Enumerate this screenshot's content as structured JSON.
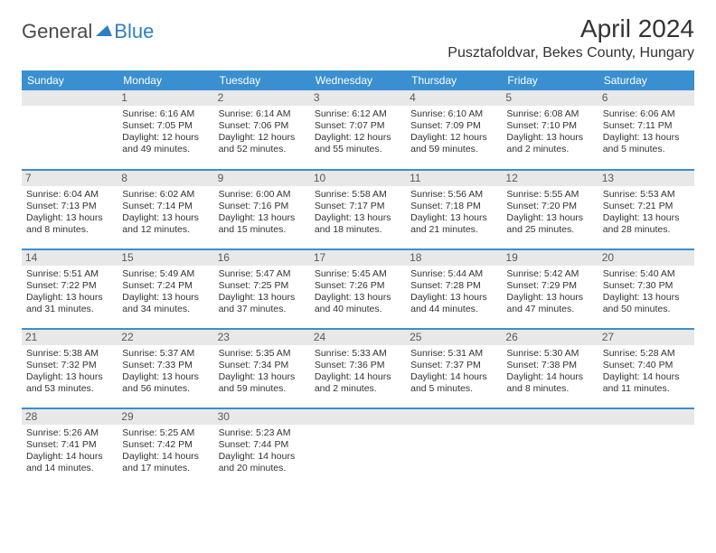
{
  "logo": {
    "general": "General",
    "blue": "Blue"
  },
  "title": "April 2024",
  "location": "Pusztafoldvar, Bekes County, Hungary",
  "colors": {
    "header_bg": "#3a8fd0",
    "header_text": "#ffffff",
    "daynum_bg": "#e8e8e8",
    "text": "#333333",
    "border": "#3a8fd0"
  },
  "days_of_week": [
    "Sunday",
    "Monday",
    "Tuesday",
    "Wednesday",
    "Thursday",
    "Friday",
    "Saturday"
  ],
  "weeks": [
    [
      {
        "day": "",
        "lines": [
          "",
          "",
          "",
          ""
        ]
      },
      {
        "day": "1",
        "lines": [
          "Sunrise: 6:16 AM",
          "Sunset: 7:05 PM",
          "Daylight: 12 hours",
          "and 49 minutes."
        ]
      },
      {
        "day": "2",
        "lines": [
          "Sunrise: 6:14 AM",
          "Sunset: 7:06 PM",
          "Daylight: 12 hours",
          "and 52 minutes."
        ]
      },
      {
        "day": "3",
        "lines": [
          "Sunrise: 6:12 AM",
          "Sunset: 7:07 PM",
          "Daylight: 12 hours",
          "and 55 minutes."
        ]
      },
      {
        "day": "4",
        "lines": [
          "Sunrise: 6:10 AM",
          "Sunset: 7:09 PM",
          "Daylight: 12 hours",
          "and 59 minutes."
        ]
      },
      {
        "day": "5",
        "lines": [
          "Sunrise: 6:08 AM",
          "Sunset: 7:10 PM",
          "Daylight: 13 hours",
          "and 2 minutes."
        ]
      },
      {
        "day": "6",
        "lines": [
          "Sunrise: 6:06 AM",
          "Sunset: 7:11 PM",
          "Daylight: 13 hours",
          "and 5 minutes."
        ]
      }
    ],
    [
      {
        "day": "7",
        "lines": [
          "Sunrise: 6:04 AM",
          "Sunset: 7:13 PM",
          "Daylight: 13 hours",
          "and 8 minutes."
        ]
      },
      {
        "day": "8",
        "lines": [
          "Sunrise: 6:02 AM",
          "Sunset: 7:14 PM",
          "Daylight: 13 hours",
          "and 12 minutes."
        ]
      },
      {
        "day": "9",
        "lines": [
          "Sunrise: 6:00 AM",
          "Sunset: 7:16 PM",
          "Daylight: 13 hours",
          "and 15 minutes."
        ]
      },
      {
        "day": "10",
        "lines": [
          "Sunrise: 5:58 AM",
          "Sunset: 7:17 PM",
          "Daylight: 13 hours",
          "and 18 minutes."
        ]
      },
      {
        "day": "11",
        "lines": [
          "Sunrise: 5:56 AM",
          "Sunset: 7:18 PM",
          "Daylight: 13 hours",
          "and 21 minutes."
        ]
      },
      {
        "day": "12",
        "lines": [
          "Sunrise: 5:55 AM",
          "Sunset: 7:20 PM",
          "Daylight: 13 hours",
          "and 25 minutes."
        ]
      },
      {
        "day": "13",
        "lines": [
          "Sunrise: 5:53 AM",
          "Sunset: 7:21 PM",
          "Daylight: 13 hours",
          "and 28 minutes."
        ]
      }
    ],
    [
      {
        "day": "14",
        "lines": [
          "Sunrise: 5:51 AM",
          "Sunset: 7:22 PM",
          "Daylight: 13 hours",
          "and 31 minutes."
        ]
      },
      {
        "day": "15",
        "lines": [
          "Sunrise: 5:49 AM",
          "Sunset: 7:24 PM",
          "Daylight: 13 hours",
          "and 34 minutes."
        ]
      },
      {
        "day": "16",
        "lines": [
          "Sunrise: 5:47 AM",
          "Sunset: 7:25 PM",
          "Daylight: 13 hours",
          "and 37 minutes."
        ]
      },
      {
        "day": "17",
        "lines": [
          "Sunrise: 5:45 AM",
          "Sunset: 7:26 PM",
          "Daylight: 13 hours",
          "and 40 minutes."
        ]
      },
      {
        "day": "18",
        "lines": [
          "Sunrise: 5:44 AM",
          "Sunset: 7:28 PM",
          "Daylight: 13 hours",
          "and 44 minutes."
        ]
      },
      {
        "day": "19",
        "lines": [
          "Sunrise: 5:42 AM",
          "Sunset: 7:29 PM",
          "Daylight: 13 hours",
          "and 47 minutes."
        ]
      },
      {
        "day": "20",
        "lines": [
          "Sunrise: 5:40 AM",
          "Sunset: 7:30 PM",
          "Daylight: 13 hours",
          "and 50 minutes."
        ]
      }
    ],
    [
      {
        "day": "21",
        "lines": [
          "Sunrise: 5:38 AM",
          "Sunset: 7:32 PM",
          "Daylight: 13 hours",
          "and 53 minutes."
        ]
      },
      {
        "day": "22",
        "lines": [
          "Sunrise: 5:37 AM",
          "Sunset: 7:33 PM",
          "Daylight: 13 hours",
          "and 56 minutes."
        ]
      },
      {
        "day": "23",
        "lines": [
          "Sunrise: 5:35 AM",
          "Sunset: 7:34 PM",
          "Daylight: 13 hours",
          "and 59 minutes."
        ]
      },
      {
        "day": "24",
        "lines": [
          "Sunrise: 5:33 AM",
          "Sunset: 7:36 PM",
          "Daylight: 14 hours",
          "and 2 minutes."
        ]
      },
      {
        "day": "25",
        "lines": [
          "Sunrise: 5:31 AM",
          "Sunset: 7:37 PM",
          "Daylight: 14 hours",
          "and 5 minutes."
        ]
      },
      {
        "day": "26",
        "lines": [
          "Sunrise: 5:30 AM",
          "Sunset: 7:38 PM",
          "Daylight: 14 hours",
          "and 8 minutes."
        ]
      },
      {
        "day": "27",
        "lines": [
          "Sunrise: 5:28 AM",
          "Sunset: 7:40 PM",
          "Daylight: 14 hours",
          "and 11 minutes."
        ]
      }
    ],
    [
      {
        "day": "28",
        "lines": [
          "Sunrise: 5:26 AM",
          "Sunset: 7:41 PM",
          "Daylight: 14 hours",
          "and 14 minutes."
        ]
      },
      {
        "day": "29",
        "lines": [
          "Sunrise: 5:25 AM",
          "Sunset: 7:42 PM",
          "Daylight: 14 hours",
          "and 17 minutes."
        ]
      },
      {
        "day": "30",
        "lines": [
          "Sunrise: 5:23 AM",
          "Sunset: 7:44 PM",
          "Daylight: 14 hours",
          "and 20 minutes."
        ]
      },
      {
        "day": "",
        "lines": [
          "",
          "",
          "",
          ""
        ]
      },
      {
        "day": "",
        "lines": [
          "",
          "",
          "",
          ""
        ]
      },
      {
        "day": "",
        "lines": [
          "",
          "",
          "",
          ""
        ]
      },
      {
        "day": "",
        "lines": [
          "",
          "",
          "",
          ""
        ]
      }
    ]
  ]
}
